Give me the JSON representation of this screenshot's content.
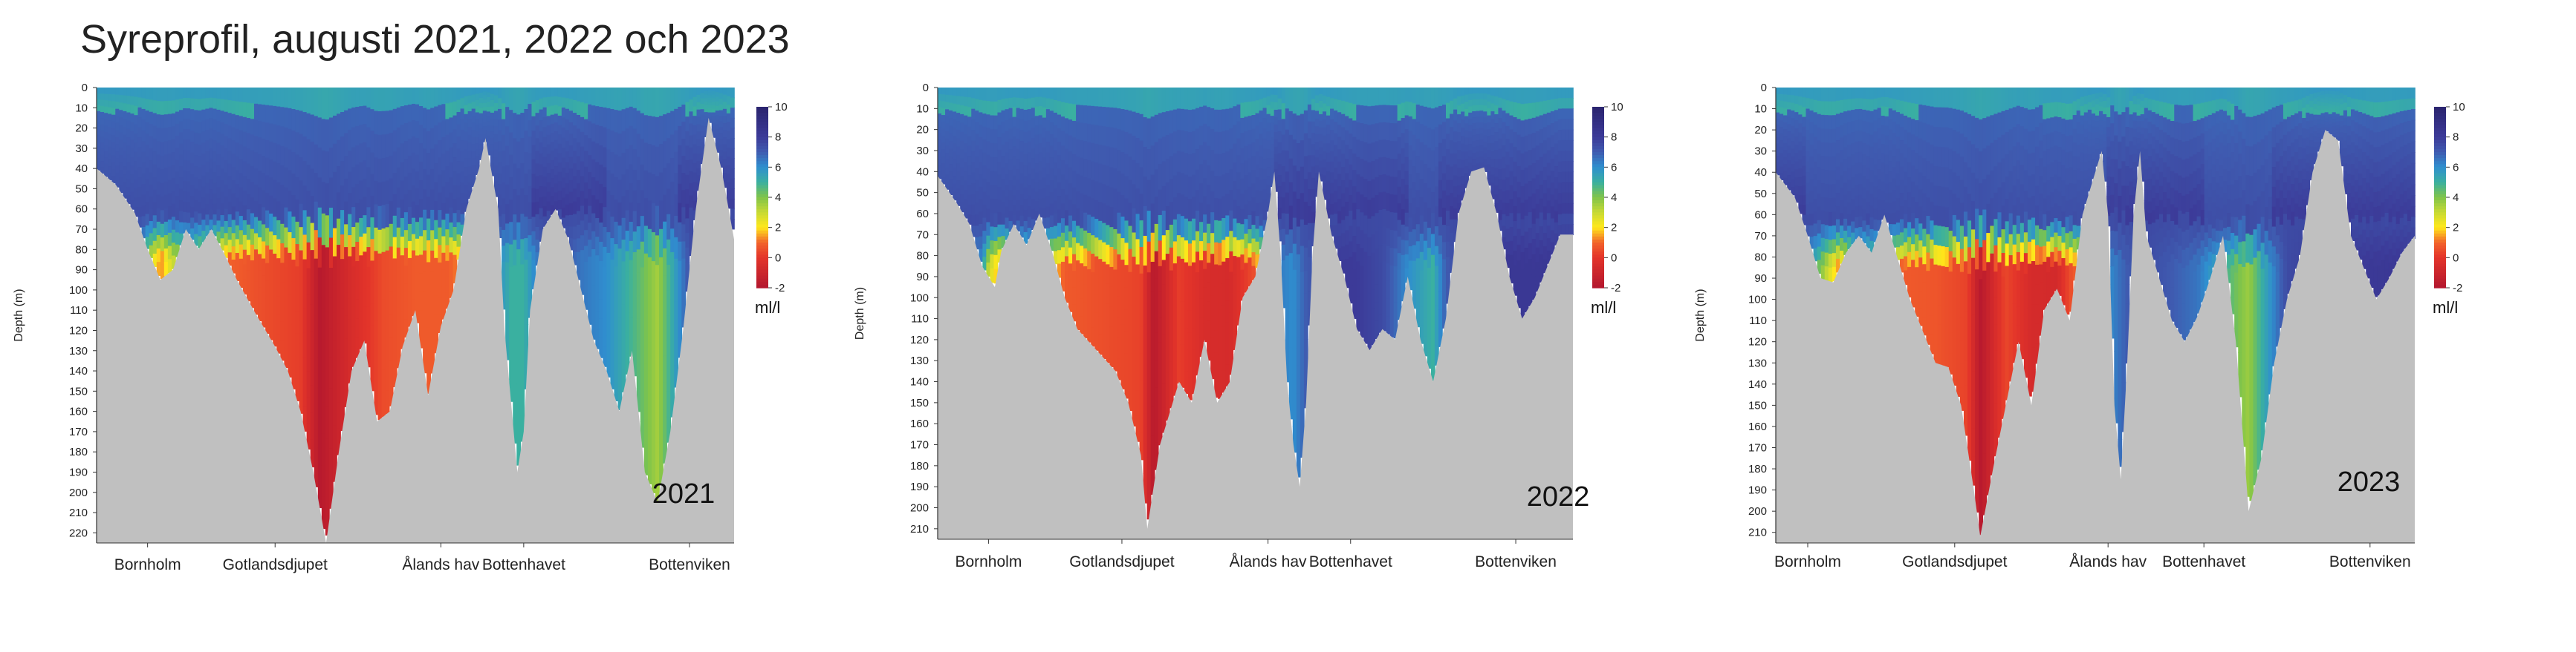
{
  "title": "Syreprofil, augusti 2021, 2022 och 2023",
  "colors": {
    "land": "#c0c0c0",
    "scale": [
      {
        "v": -2,
        "c": "#b3172e"
      },
      {
        "v": 0,
        "c": "#e3342a"
      },
      {
        "v": 1,
        "c": "#f2632b"
      },
      {
        "v": 2,
        "c": "#ffe81a"
      },
      {
        "v": 3,
        "c": "#c8d934"
      },
      {
        "v": 4,
        "c": "#7fc44a"
      },
      {
        "v": 5,
        "c": "#3ab0a0"
      },
      {
        "v": 6,
        "c": "#2f8fcf"
      },
      {
        "v": 7,
        "c": "#3f5bb0"
      },
      {
        "v": 8,
        "c": "#3c3a98"
      },
      {
        "v": 10,
        "c": "#2a246e"
      }
    ]
  },
  "chart_data": [
    {
      "type": "heatmap",
      "year_label": "2021",
      "ylabel": "Depth (m)",
      "ylim": [
        0,
        225
      ],
      "yticks": [
        0,
        10,
        20,
        30,
        40,
        50,
        60,
        70,
        80,
        90,
        100,
        110,
        120,
        130,
        140,
        150,
        160,
        170,
        180,
        190,
        200,
        210,
        220
      ],
      "stations": [
        "Bornholm",
        "Gotlandsdjupet",
        "Ålands hav",
        "Bottenhavet",
        "Bottenviken"
      ],
      "station_pos": [
        0.08,
        0.28,
        0.54,
        0.67,
        0.93
      ],
      "colorbar": {
        "label": "ml/l",
        "ticks": [
          10,
          8,
          6,
          4,
          2,
          0,
          -2
        ],
        "range": [
          -2,
          10
        ]
      },
      "bottom_depth": [
        [
          0,
          40
        ],
        [
          0.03,
          48
        ],
        [
          0.06,
          62
        ],
        [
          0.08,
          80
        ],
        [
          0.1,
          95
        ],
        [
          0.12,
          90
        ],
        [
          0.14,
          70
        ],
        [
          0.16,
          80
        ],
        [
          0.18,
          70
        ],
        [
          0.2,
          82
        ],
        [
          0.22,
          95
        ],
        [
          0.25,
          112
        ],
        [
          0.28,
          128
        ],
        [
          0.3,
          140
        ],
        [
          0.32,
          160
        ],
        [
          0.34,
          190
        ],
        [
          0.36,
          225
        ],
        [
          0.38,
          180
        ],
        [
          0.4,
          140
        ],
        [
          0.42,
          125
        ],
        [
          0.44,
          165
        ],
        [
          0.46,
          160
        ],
        [
          0.48,
          128
        ],
        [
          0.5,
          110
        ],
        [
          0.52,
          152
        ],
        [
          0.54,
          118
        ],
        [
          0.56,
          100
        ],
        [
          0.58,
          60
        ],
        [
          0.6,
          40
        ],
        [
          0.61,
          25
        ],
        [
          0.63,
          60
        ],
        [
          0.64,
          120
        ],
        [
          0.65,
          155
        ],
        [
          0.66,
          190
        ],
        [
          0.67,
          170
        ],
        [
          0.68,
          110
        ],
        [
          0.7,
          70
        ],
        [
          0.72,
          60
        ],
        [
          0.74,
          75
        ],
        [
          0.76,
          100
        ],
        [
          0.78,
          125
        ],
        [
          0.8,
          140
        ],
        [
          0.82,
          160
        ],
        [
          0.84,
          130
        ],
        [
          0.86,
          190
        ],
        [
          0.88,
          205
        ],
        [
          0.9,
          170
        ],
        [
          0.92,
          120
        ],
        [
          0.94,
          60
        ],
        [
          0.96,
          15
        ],
        [
          0.98,
          40
        ],
        [
          1,
          75
        ]
      ],
      "profile": [
        [
          0,
          5
        ],
        [
          0.04,
          5
        ],
        [
          0.07,
          6
        ],
        [
          0.08,
          3.5
        ],
        [
          0.1,
          1.2
        ],
        [
          0.12,
          3
        ],
        [
          0.15,
          4
        ],
        [
          0.2,
          1
        ],
        [
          0.25,
          0.6
        ],
        [
          0.32,
          0.2
        ],
        [
          0.35,
          -1.8
        ],
        [
          0.4,
          -0.5
        ],
        [
          0.45,
          0.5
        ],
        [
          0.5,
          0.8
        ],
        [
          0.55,
          0.8
        ],
        [
          0.6,
          2
        ],
        [
          0.63,
          6
        ],
        [
          0.65,
          5
        ],
        [
          0.67,
          5
        ],
        [
          0.7,
          7
        ],
        [
          0.72,
          7.5
        ],
        [
          0.76,
          6.5
        ],
        [
          0.8,
          6
        ],
        [
          0.85,
          4.5
        ],
        [
          0.88,
          3.5
        ],
        [
          0.9,
          5
        ],
        [
          0.94,
          8
        ],
        [
          1,
          8
        ]
      ]
    },
    {
      "type": "heatmap",
      "year_label": "2022",
      "ylabel": "Depth (m)",
      "ylim": [
        0,
        215
      ],
      "yticks": [
        0,
        10,
        20,
        30,
        40,
        50,
        60,
        70,
        80,
        90,
        100,
        110,
        120,
        130,
        140,
        150,
        160,
        170,
        180,
        190,
        200,
        210
      ],
      "stations": [
        "Bornholm",
        "Gotlandsdjupet",
        "Ålands hav",
        "Bottenhavet",
        "Bottenviken"
      ],
      "station_pos": [
        0.08,
        0.29,
        0.52,
        0.65,
        0.91
      ],
      "colorbar": {
        "label": "ml/l",
        "ticks": [
          10,
          8,
          6,
          4,
          2,
          0,
          -2
        ],
        "range": [
          -2,
          10
        ]
      },
      "bottom_depth": [
        [
          0,
          42
        ],
        [
          0.03,
          55
        ],
        [
          0.05,
          65
        ],
        [
          0.07,
          85
        ],
        [
          0.09,
          95
        ],
        [
          0.1,
          78
        ],
        [
          0.12,
          65
        ],
        [
          0.14,
          75
        ],
        [
          0.16,
          60
        ],
        [
          0.18,
          78
        ],
        [
          0.2,
          100
        ],
        [
          0.22,
          115
        ],
        [
          0.25,
          125
        ],
        [
          0.28,
          135
        ],
        [
          0.3,
          150
        ],
        [
          0.32,
          175
        ],
        [
          0.33,
          210
        ],
        [
          0.35,
          170
        ],
        [
          0.38,
          140
        ],
        [
          0.4,
          150
        ],
        [
          0.42,
          120
        ],
        [
          0.44,
          150
        ],
        [
          0.46,
          140
        ],
        [
          0.48,
          100
        ],
        [
          0.5,
          90
        ],
        [
          0.52,
          60
        ],
        [
          0.53,
          40
        ],
        [
          0.54,
          80
        ],
        [
          0.55,
          140
        ],
        [
          0.56,
          170
        ],
        [
          0.57,
          190
        ],
        [
          0.58,
          150
        ],
        [
          0.59,
          80
        ],
        [
          0.6,
          40
        ],
        [
          0.62,
          70
        ],
        [
          0.64,
          90
        ],
        [
          0.66,
          115
        ],
        [
          0.68,
          125
        ],
        [
          0.7,
          115
        ],
        [
          0.72,
          120
        ],
        [
          0.74,
          90
        ],
        [
          0.76,
          120
        ],
        [
          0.78,
          140
        ],
        [
          0.8,
          110
        ],
        [
          0.82,
          60
        ],
        [
          0.84,
          40
        ],
        [
          0.86,
          38
        ],
        [
          0.88,
          60
        ],
        [
          0.9,
          90
        ],
        [
          0.92,
          110
        ],
        [
          0.94,
          100
        ],
        [
          0.96,
          85
        ],
        [
          0.98,
          70
        ],
        [
          1,
          70
        ]
      ],
      "profile": [
        [
          0,
          6
        ],
        [
          0.04,
          6
        ],
        [
          0.07,
          6
        ],
        [
          0.08,
          3
        ],
        [
          0.1,
          1
        ],
        [
          0.12,
          3.5
        ],
        [
          0.15,
          4
        ],
        [
          0.2,
          0.8
        ],
        [
          0.25,
          0.6
        ],
        [
          0.32,
          0.3
        ],
        [
          0.34,
          -1.8
        ],
        [
          0.38,
          0.2
        ],
        [
          0.42,
          -0.5
        ],
        [
          0.46,
          -0.6
        ],
        [
          0.5,
          0.6
        ],
        [
          0.53,
          6.5
        ],
        [
          0.56,
          6
        ],
        [
          0.58,
          7
        ],
        [
          0.62,
          8
        ],
        [
          0.66,
          8
        ],
        [
          0.7,
          7.5
        ],
        [
          0.74,
          6
        ],
        [
          0.78,
          5
        ],
        [
          0.8,
          7
        ],
        [
          0.84,
          8
        ],
        [
          0.9,
          8.2
        ],
        [
          1,
          8.2
        ]
      ]
    },
    {
      "type": "heatmap",
      "year_label": "2023",
      "ylabel": "Depth (m)",
      "ylim": [
        0,
        215
      ],
      "yticks": [
        0,
        10,
        20,
        30,
        40,
        50,
        60,
        70,
        80,
        90,
        100,
        110,
        120,
        130,
        140,
        150,
        160,
        170,
        180,
        190,
        200,
        210
      ],
      "stations": [
        "Bornholm",
        "Gotlandsdjupet",
        "Ålands hav",
        "Bottenhavet",
        "Bottenviken"
      ],
      "station_pos": [
        0.05,
        0.28,
        0.52,
        0.67,
        0.93
      ],
      "colorbar": {
        "label": "ml/l",
        "ticks": [
          10,
          8,
          6,
          4,
          2,
          0,
          -2
        ],
        "range": [
          -2,
          10
        ]
      },
      "bottom_depth": [
        [
          0,
          40
        ],
        [
          0.03,
          52
        ],
        [
          0.05,
          70
        ],
        [
          0.07,
          90
        ],
        [
          0.09,
          92
        ],
        [
          0.11,
          78
        ],
        [
          0.13,
          70
        ],
        [
          0.15,
          78
        ],
        [
          0.17,
          60
        ],
        [
          0.19,
          80
        ],
        [
          0.21,
          100
        ],
        [
          0.23,
          115
        ],
        [
          0.25,
          130
        ],
        [
          0.27,
          132
        ],
        [
          0.29,
          150
        ],
        [
          0.31,
          190
        ],
        [
          0.32,
          212
        ],
        [
          0.34,
          180
        ],
        [
          0.36,
          150
        ],
        [
          0.38,
          120
        ],
        [
          0.4,
          150
        ],
        [
          0.42,
          105
        ],
        [
          0.44,
          95
        ],
        [
          0.46,
          110
        ],
        [
          0.48,
          60
        ],
        [
          0.5,
          40
        ],
        [
          0.51,
          30
        ],
        [
          0.52,
          60
        ],
        [
          0.53,
          150
        ],
        [
          0.54,
          185
        ],
        [
          0.55,
          130
        ],
        [
          0.56,
          60
        ],
        [
          0.57,
          30
        ],
        [
          0.58,
          70
        ],
        [
          0.6,
          90
        ],
        [
          0.62,
          110
        ],
        [
          0.64,
          120
        ],
        [
          0.66,
          108
        ],
        [
          0.68,
          90
        ],
        [
          0.7,
          70
        ],
        [
          0.72,
          120
        ],
        [
          0.74,
          200
        ],
        [
          0.76,
          175
        ],
        [
          0.78,
          130
        ],
        [
          0.8,
          100
        ],
        [
          0.82,
          80
        ],
        [
          0.84,
          40
        ],
        [
          0.86,
          20
        ],
        [
          0.88,
          25
        ],
        [
          0.9,
          70
        ],
        [
          0.92,
          85
        ],
        [
          0.94,
          100
        ],
        [
          0.96,
          90
        ],
        [
          0.98,
          78
        ],
        [
          1,
          70
        ]
      ],
      "profile": [
        [
          0,
          6
        ],
        [
          0.04,
          6.5
        ],
        [
          0.06,
          5
        ],
        [
          0.08,
          3
        ],
        [
          0.1,
          1.2
        ],
        [
          0.12,
          3
        ],
        [
          0.15,
          4
        ],
        [
          0.2,
          0.8
        ],
        [
          0.25,
          0.7
        ],
        [
          0.3,
          0.3
        ],
        [
          0.32,
          -1.8
        ],
        [
          0.36,
          0.4
        ],
        [
          0.4,
          -0.6
        ],
        [
          0.44,
          -0.7
        ],
        [
          0.46,
          0.5
        ],
        [
          0.5,
          2
        ],
        [
          0.52,
          6
        ],
        [
          0.55,
          7
        ],
        [
          0.58,
          7.5
        ],
        [
          0.62,
          7
        ],
        [
          0.66,
          6.5
        ],
        [
          0.7,
          5
        ],
        [
          0.72,
          4.2
        ],
        [
          0.74,
          3.6
        ],
        [
          0.76,
          5
        ],
        [
          0.8,
          7.5
        ],
        [
          0.86,
          8
        ],
        [
          1,
          8.2
        ]
      ]
    }
  ]
}
